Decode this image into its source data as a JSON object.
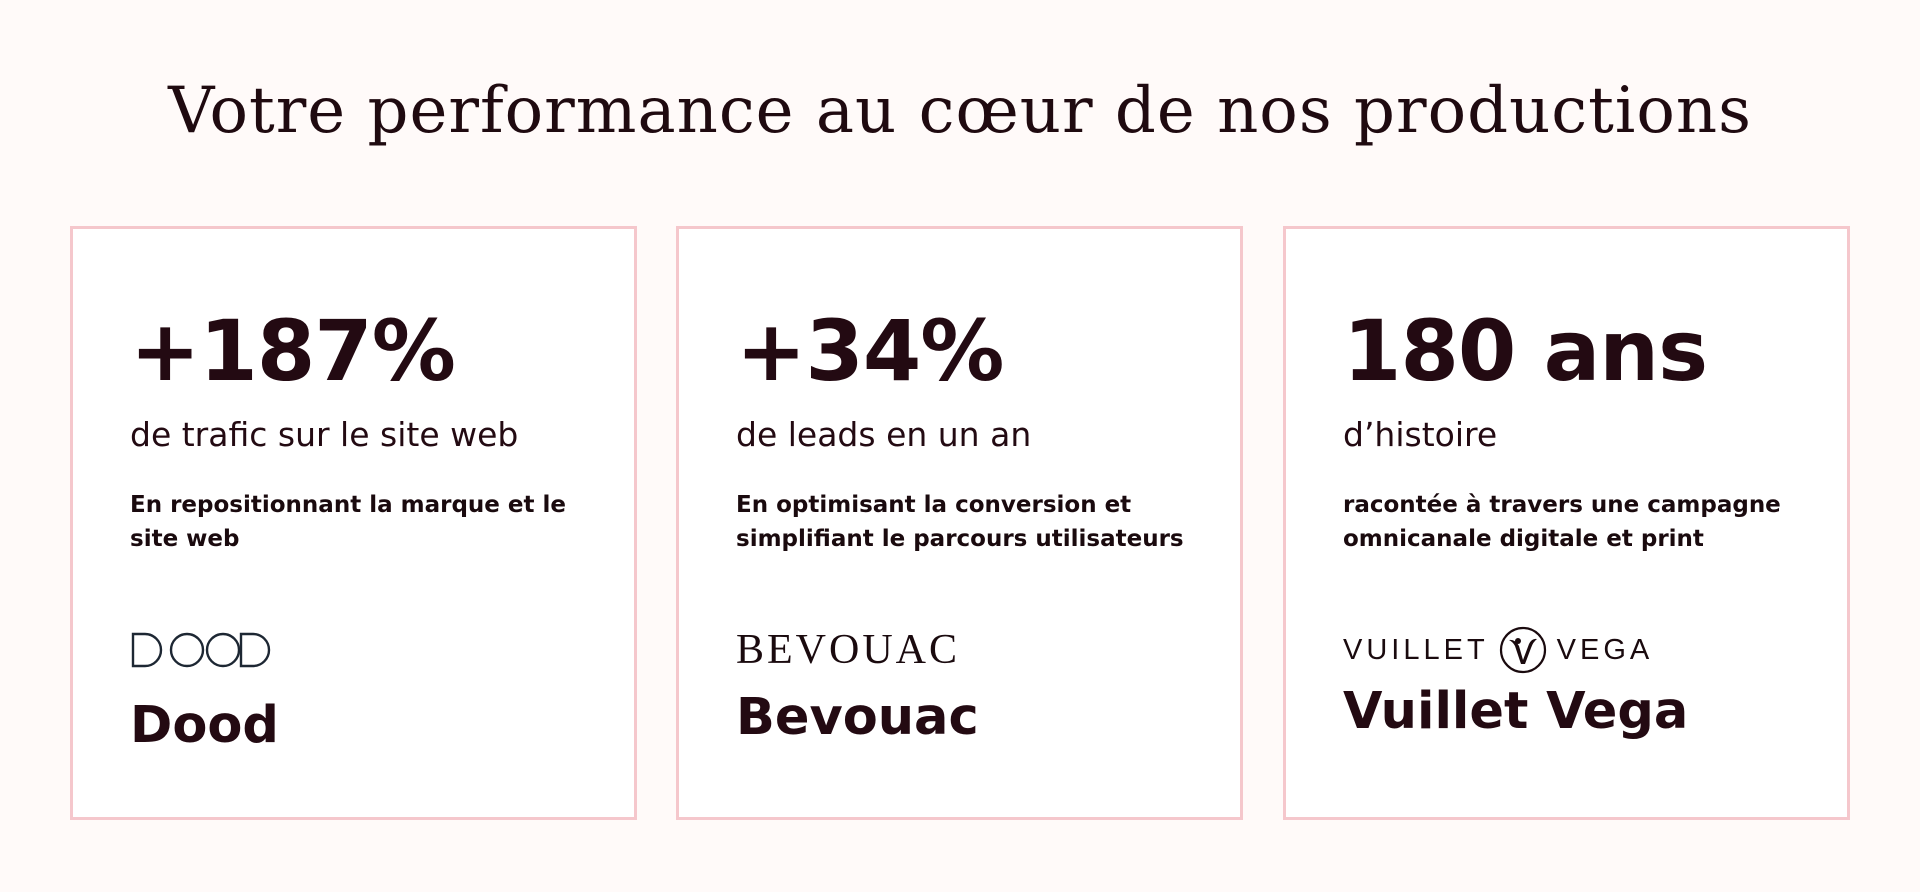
{
  "heading": "Votre performance au cœur de nos productions",
  "cards": [
    {
      "stat": "+187%",
      "stat_label": "de trafic sur le site web",
      "description": "En repositionnant la marque et le site web",
      "logo": {
        "icon": "dood-logo-icon"
      },
      "brand_name": "Dood"
    },
    {
      "stat": "+34%",
      "stat_label": "de leads en un an",
      "description": "En optimisant la conversion et simplifiant le parcours utilisateurs",
      "logo": {
        "text": "BEVOUAC",
        "icon": "bevouac-logo-icon"
      },
      "brand_name": "Bevouac"
    },
    {
      "stat": "180 ans",
      "stat_label": "d’histoire",
      "description": "racontée à travers une campagne omnicanale digitale et print",
      "logo": {
        "left_text": "VUILLET",
        "right_text": "VEGA",
        "icon": "vuillet-vega-logo-icon"
      },
      "brand_name": "Vuillet Vega"
    }
  ],
  "colors": {
    "background": "#fffaf9",
    "card_border": "#f5c7cc",
    "text": "#230a12"
  }
}
